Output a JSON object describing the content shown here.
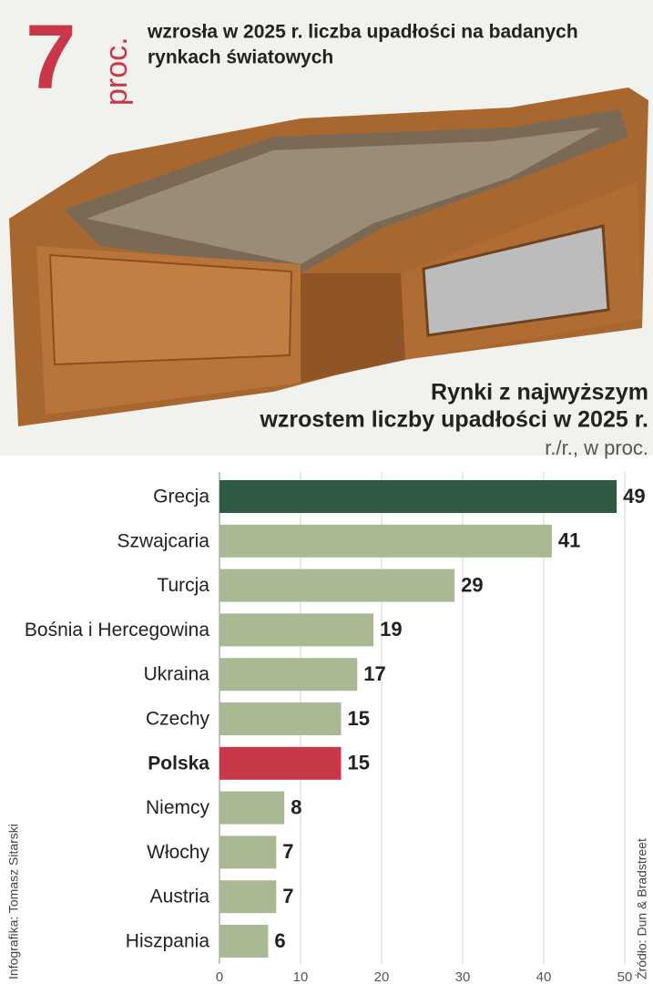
{
  "header": {
    "big_number": "7",
    "unit": "proc.",
    "lines": [
      "wzrosła w 2025 r. liczba upadłości na badanych",
      "rynkach światowych"
    ]
  },
  "chart_data": {
    "type": "bar",
    "orientation": "horizontal",
    "title": [
      "Rynki z najwyższym",
      "wzrostem liczby upadłości w 2025 r."
    ],
    "subtitle": "r./r., w proc.",
    "categories": [
      "Grecja",
      "Szwajcaria",
      "Turcja",
      "Bośnia i Hercegowina",
      "Ukraina",
      "Czechy",
      "Polska",
      "Niemcy",
      "Włochy",
      "Austria",
      "Hiszpania"
    ],
    "values": [
      49,
      41,
      29,
      19,
      17,
      15,
      15,
      8,
      7,
      7,
      6
    ],
    "colors": [
      "#2d5a40",
      "#a9b993",
      "#a9b993",
      "#a9b993",
      "#a9b993",
      "#a9b993",
      "#c83848",
      "#a9b993",
      "#a9b993",
      "#a9b993",
      "#a9b993"
    ],
    "label_weights": [
      "normal",
      "normal",
      "normal",
      "normal",
      "normal",
      "normal",
      "bold",
      "normal",
      "normal",
      "normal",
      "normal"
    ],
    "xlim": [
      0,
      50
    ],
    "xticks": [
      0,
      10,
      20,
      30,
      40,
      50
    ],
    "grid": true
  },
  "credits": {
    "author": "Infografika: Tomasz Sitarski",
    "source": "Źródło: Dun & Bradstreet"
  }
}
